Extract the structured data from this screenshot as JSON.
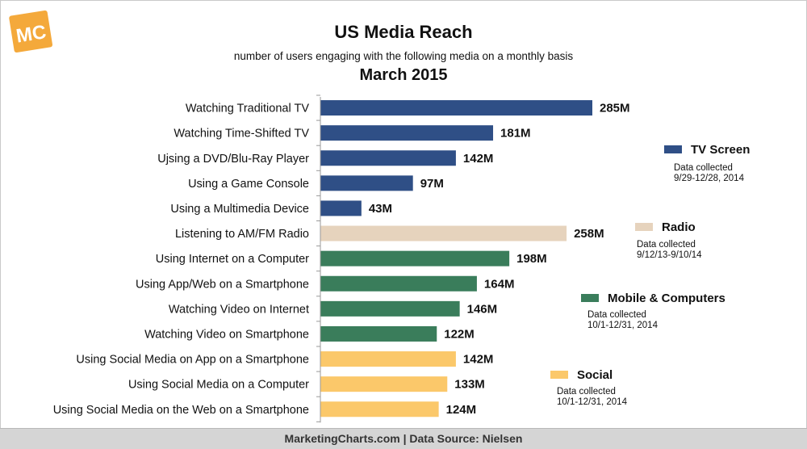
{
  "brand": {
    "logo_text": "MC"
  },
  "title": "US Media Reach",
  "subtitle": "number of users engaging with the following media on a monthly basis",
  "period": "March 2015",
  "footer": "MarketingCharts.com | Data Source: Nielsen",
  "colors": {
    "tv": "#2f4f86",
    "radio": "#e6d3bd",
    "mobile": "#3a7d5b",
    "social": "#fbc86a",
    "logo": "#f4a93b"
  },
  "chart_data": {
    "type": "bar",
    "orientation": "horizontal",
    "categories": [
      "Watching Traditional TV",
      "Watching Time-Shifted TV",
      "Ujsing a DVD/Blu-Ray Player",
      "Using a Game Console",
      "Using a Multimedia Device",
      "Listening to AM/FM Radio",
      "Using Internet on a Computer",
      "Using App/Web on a Smartphone",
      "Watching Video on Internet",
      "Watching Video on Smartphone",
      "Using Social Media on App on a Smartphone",
      "Using Social Media on a Computer",
      "Using Social Media on the Web on a Smartphone"
    ],
    "values": [
      285,
      181,
      142,
      97,
      43,
      258,
      198,
      164,
      146,
      122,
      142,
      133,
      124
    ],
    "value_labels": [
      "285M",
      "181M",
      "142M",
      "97M",
      "43M",
      "258M",
      "198M",
      "164M",
      "146M",
      "122M",
      "142M",
      "133M",
      "124M"
    ],
    "groups": [
      "tv",
      "tv",
      "tv",
      "tv",
      "tv",
      "radio",
      "mobile",
      "mobile",
      "mobile",
      "mobile",
      "social",
      "social",
      "social"
    ],
    "legend": [
      {
        "key": "tv",
        "name": "TV Screen",
        "note_line1": "Data collected",
        "note_line2": "9/29-12/28, 2014"
      },
      {
        "key": "radio",
        "name": "Radio",
        "note_line1": "Data collected",
        "note_line2": "9/12/13-9/10/14"
      },
      {
        "key": "mobile",
        "name": "Mobile & Computers",
        "note_line1": "Data collected",
        "note_line2": "10/1-12/31, 2014"
      },
      {
        "key": "social",
        "name": "Social",
        "note_line1": "Data collected",
        "note_line2": "10/1-12/31, 2014"
      }
    ],
    "legend_placement": "right",
    "xlim": [
      0,
      285
    ],
    "grid": false
  }
}
